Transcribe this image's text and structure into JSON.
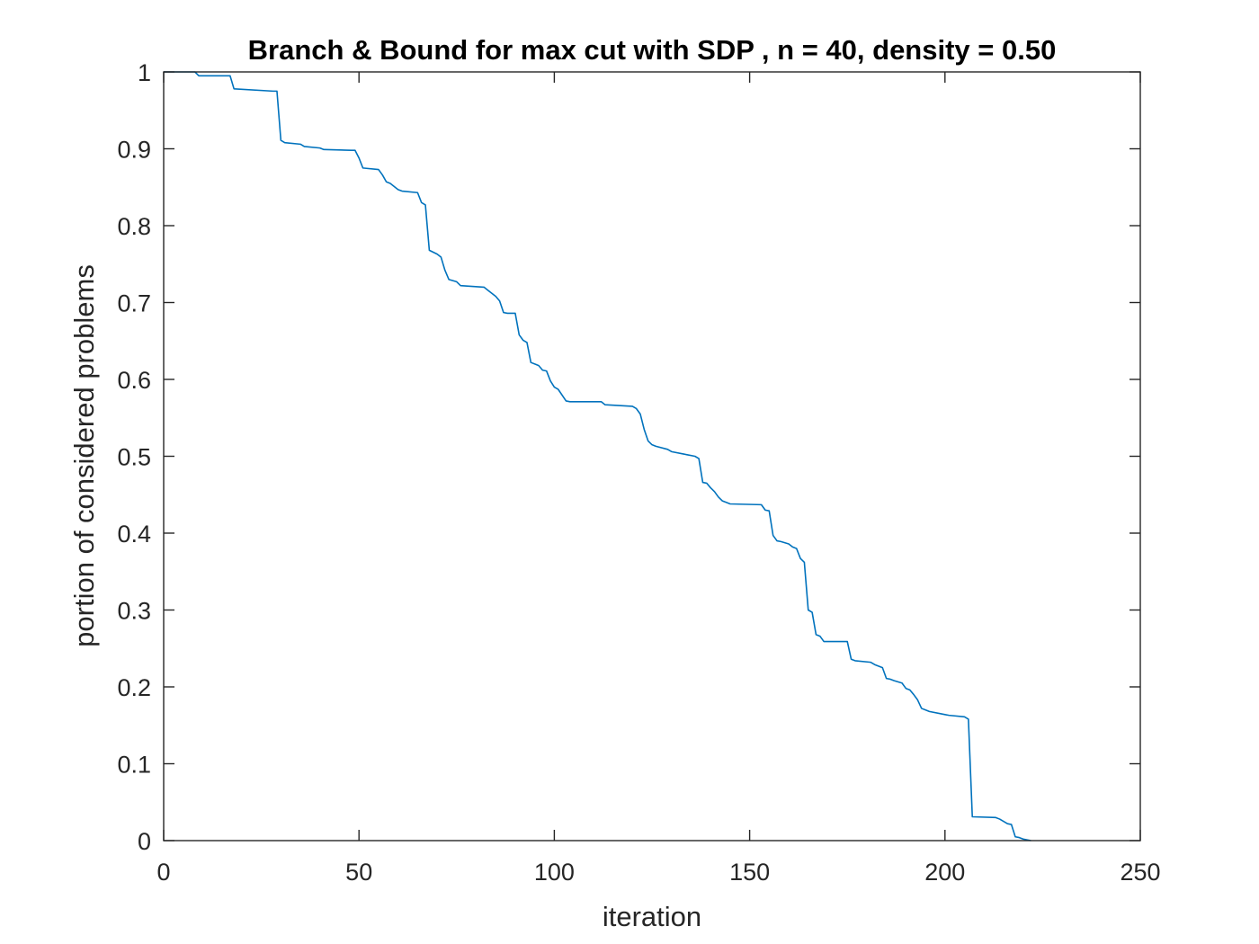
{
  "chart_data": {
    "type": "line",
    "title": "Branch & Bound for max cut with SDP , n = 40, density = 0.50",
    "xlabel": "iteration",
    "ylabel": "portion of considered problems",
    "xlim": [
      0,
      250
    ],
    "ylim": [
      0,
      1
    ],
    "xticks": [
      "0",
      "50",
      "100",
      "150",
      "200",
      "250"
    ],
    "yticks": [
      "0",
      "0.1",
      "0.2",
      "0.3",
      "0.4",
      "0.5",
      "0.6",
      "0.7",
      "0.8",
      "0.9",
      "1"
    ],
    "grid": false,
    "legend": "none",
    "line_color": "#0072BD",
    "series": [
      {
        "x": [
          0,
          8,
          9,
          17,
          18,
          28,
          29,
          30,
          31,
          35,
          36,
          40,
          41,
          48,
          49,
          50,
          51,
          55,
          56,
          57,
          58,
          60,
          61,
          65,
          66,
          67,
          68,
          70,
          71,
          72,
          73,
          75,
          76,
          82,
          83,
          85,
          86,
          87,
          88,
          90,
          91,
          92,
          93,
          94,
          95,
          96,
          97,
          98,
          99,
          100,
          101,
          103,
          104,
          105,
          112,
          113,
          120,
          121,
          122,
          123,
          124,
          125,
          126,
          129,
          130,
          133,
          134,
          136,
          137,
          138,
          139,
          140,
          141,
          142,
          143,
          144,
          145,
          153,
          154,
          155,
          156,
          157,
          158,
          160,
          161,
          162,
          163,
          164,
          165,
          166,
          167,
          168,
          169,
          170,
          175,
          176,
          177,
          181,
          182,
          184,
          185,
          186,
          187,
          189,
          190,
          191,
          192,
          193,
          194,
          195,
          196,
          199,
          200,
          201,
          205,
          206,
          207,
          213,
          214,
          216,
          217,
          218,
          219,
          220,
          221,
          222
        ],
        "y": [
          1.0,
          1.0,
          0.995,
          0.995,
          0.978,
          0.975,
          0.975,
          0.911,
          0.908,
          0.906,
          0.903,
          0.901,
          0.899,
          0.898,
          0.898,
          0.888,
          0.875,
          0.873,
          0.866,
          0.857,
          0.855,
          0.847,
          0.845,
          0.843,
          0.83,
          0.827,
          0.768,
          0.763,
          0.759,
          0.742,
          0.73,
          0.727,
          0.722,
          0.72,
          0.716,
          0.708,
          0.702,
          0.687,
          0.686,
          0.686,
          0.658,
          0.651,
          0.648,
          0.622,
          0.62,
          0.618,
          0.612,
          0.611,
          0.598,
          0.59,
          0.587,
          0.572,
          0.571,
          0.571,
          0.571,
          0.567,
          0.565,
          0.562,
          0.555,
          0.535,
          0.52,
          0.515,
          0.513,
          0.509,
          0.506,
          0.503,
          0.502,
          0.5,
          0.497,
          0.466,
          0.465,
          0.459,
          0.454,
          0.447,
          0.442,
          0.44,
          0.438,
          0.437,
          0.43,
          0.429,
          0.397,
          0.39,
          0.389,
          0.386,
          0.382,
          0.38,
          0.367,
          0.362,
          0.3,
          0.297,
          0.268,
          0.266,
          0.259,
          0.259,
          0.259,
          0.236,
          0.234,
          0.232,
          0.229,
          0.225,
          0.211,
          0.21,
          0.208,
          0.205,
          0.198,
          0.196,
          0.19,
          0.183,
          0.172,
          0.17,
          0.168,
          0.165,
          0.164,
          0.163,
          0.161,
          0.158,
          0.031,
          0.03,
          0.028,
          0.022,
          0.021,
          0.005,
          0.004,
          0.002,
          0.001,
          0.0
        ]
      }
    ]
  }
}
